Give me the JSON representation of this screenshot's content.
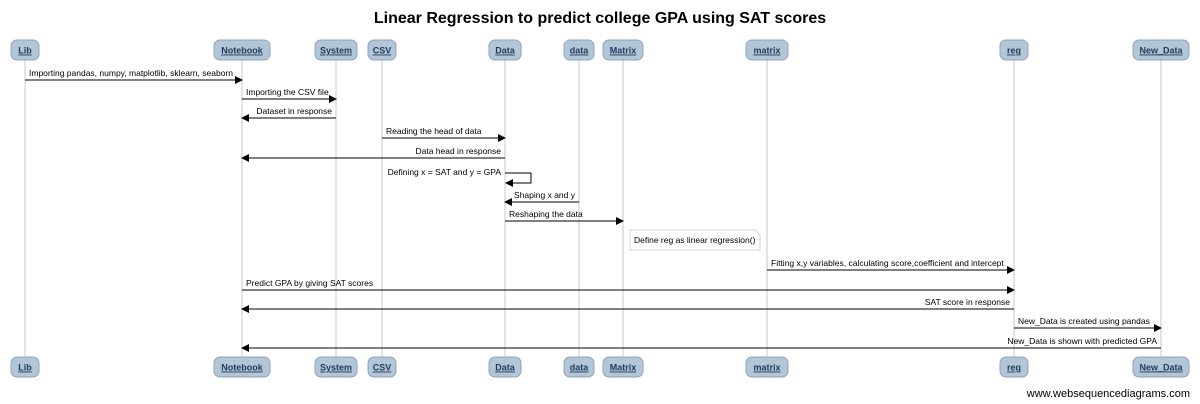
{
  "title": "Linear Regression to predict college GPA using SAT scores",
  "participants": [
    {
      "id": "Lib",
      "label": "Lib"
    },
    {
      "id": "Notebook",
      "label": "Notebook"
    },
    {
      "id": "System",
      "label": "System"
    },
    {
      "id": "CSV",
      "label": "CSV"
    },
    {
      "id": "Data",
      "label": "Data"
    },
    {
      "id": "data",
      "label": "data"
    },
    {
      "id": "Matrix",
      "label": "Matrix"
    },
    {
      "id": "matrix",
      "label": "matrix"
    },
    {
      "id": "reg",
      "label": "reg"
    },
    {
      "id": "New_Data",
      "label": "New_Data"
    }
  ],
  "messages": [
    {
      "from": "Lib",
      "to": "Notebook",
      "text": "Importing pandas, numpy, matplotlib, sklearn, seaborn"
    },
    {
      "from": "Notebook",
      "to": "System",
      "text": "Importing the CSV file"
    },
    {
      "from": "System",
      "to": "Notebook",
      "text": "Dataset in response"
    },
    {
      "from": "CSV",
      "to": "Data",
      "text": "Reading the head of data"
    },
    {
      "from": "Data",
      "to": "Notebook",
      "text": "Data head in response"
    },
    {
      "from": "Data",
      "to": "Data",
      "text": "Defining x = SAT and y = GPA"
    },
    {
      "from": "data",
      "to": "Data",
      "text": "Shaping x and y"
    },
    {
      "from": "Data",
      "to": "Matrix",
      "text": "Reshaping the data"
    },
    {
      "note_over": "Matrix",
      "text": "Define reg as linear regression()"
    },
    {
      "from": "matrix",
      "to": "reg",
      "text": "Fitting x,y variables, calculating score,coefficient and intercept"
    },
    {
      "from": "Notebook",
      "to": "reg",
      "text": "Predict GPA by giving SAT scores"
    },
    {
      "from": "reg",
      "to": "Notebook",
      "text": "SAT score in response"
    },
    {
      "from": "reg",
      "to": "New_Data",
      "text": "New_Data is created using pandas"
    },
    {
      "from": "New_Data",
      "to": "Notebook",
      "text": "New_Data is shown with predicted GPA"
    }
  ],
  "footer": "www.websequencediagrams.com",
  "colors": {
    "participant_fill": "#b3c6d8",
    "participant_stroke": "#8ea4b9",
    "participant_text": "#1f3a5a",
    "lifeline": "#c8c8c8"
  }
}
